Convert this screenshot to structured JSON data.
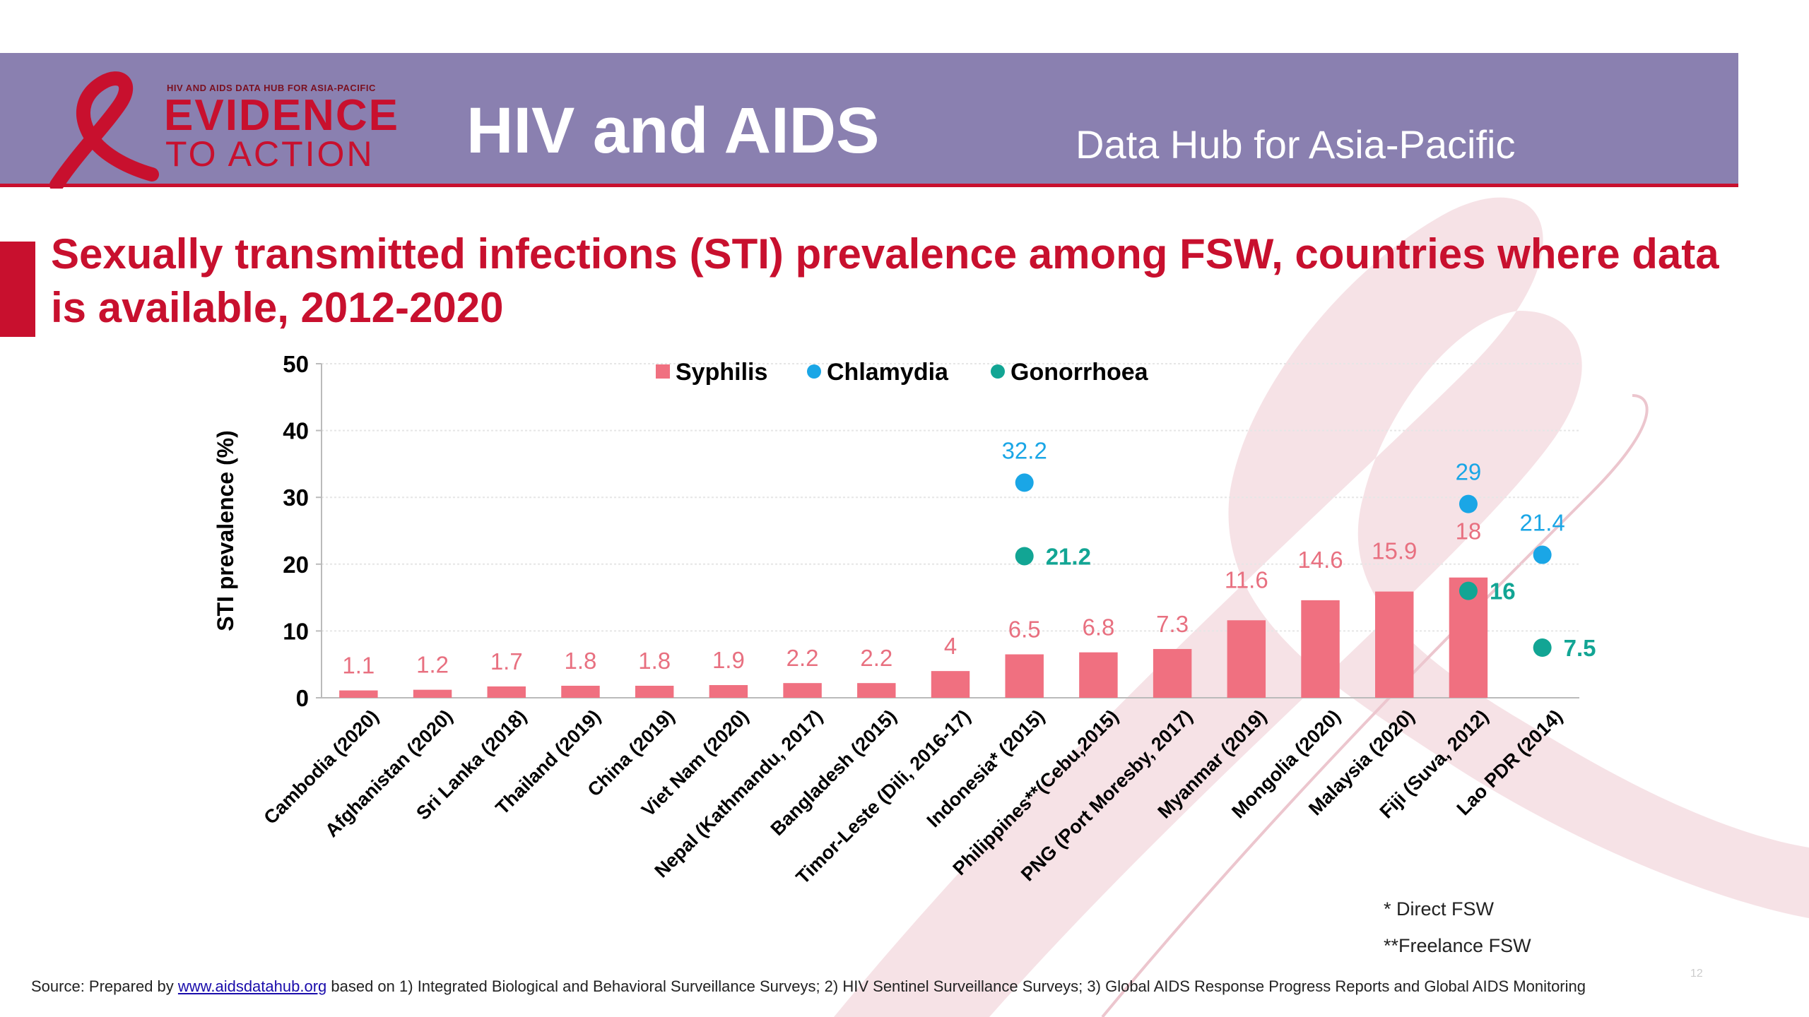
{
  "header": {
    "logo_tagline": "HIV AND AIDS DATA HUB FOR ASIA-PACIFIC",
    "logo_line1": "EVIDENCE",
    "logo_line2": "TO ACTION",
    "title": "HIV and AIDS",
    "subtitle": "Data Hub for Asia-Pacific"
  },
  "slide_title": "Sexually transmitted infections (STI) prevalence among FSW, countries where data is available, 2012-2020",
  "footnotes": [
    "* Direct FSW",
    "**Freelance FSW"
  ],
  "source": {
    "prefix": "Source: Prepared by ",
    "link": "www.aidsdatahub.org",
    "suffix": " based on 1) Integrated Biological and Behavioral Surveillance Surveys; 2) HIV Sentinel Surveillance Surveys; 3) Global AIDS Response Progress Reports and Global AIDS Monitoring"
  },
  "page_number": "12",
  "colors": {
    "header_bg": "#8a80b0",
    "brand_red": "#c8102e",
    "syphilis": "#f07080",
    "syphilis_label": "#e87080",
    "chlamydia": "#1aa6e6",
    "gonorrhoea": "#12a594"
  },
  "chart_data": {
    "type": "bar",
    "title": "",
    "ylabel": "STI prevalence (%)",
    "xlabel": "",
    "ylim": [
      0,
      50
    ],
    "yticks": [
      0,
      10,
      20,
      30,
      40,
      50
    ],
    "grid": true,
    "legend_position": "top",
    "categories": [
      "Cambodia (2020)",
      "Afghanistan (2020)",
      "Sri Lanka (2018)",
      "Thailand (2019)",
      "China (2019)",
      "Viet Nam (2020)",
      "Nepal (Kathmandu, 2017)",
      "Bangladesh (2015)",
      "Timor-Leste (Dili, 2016-17)",
      "Indonesia* (2015)",
      "Philippines**(Cebu,2015)",
      "PNG (Port Moresby, 2017)",
      "Myanmar (2019)",
      "Mongolia (2020)",
      "Malaysia (2020)",
      "Fiji (Suva, 2012)",
      "Lao PDR (2014)"
    ],
    "series": [
      {
        "name": "Syphilis",
        "kind": "bar",
        "values": [
          1.1,
          1.2,
          1.7,
          1.8,
          1.8,
          1.9,
          2.2,
          2.2,
          4,
          6.5,
          6.8,
          7.3,
          11.6,
          14.6,
          15.9,
          18,
          null
        ],
        "labels": [
          "1.1",
          "1.2",
          "1.7",
          "1.8",
          "1.8",
          "1.9",
          "2.2",
          "2.2",
          "4",
          "6.5",
          "6.8",
          "7.3",
          "11.6",
          "14.6",
          "15.9",
          "18",
          ""
        ]
      },
      {
        "name": "Chlamydia",
        "kind": "point",
        "values": [
          null,
          null,
          null,
          null,
          null,
          null,
          null,
          null,
          null,
          32.2,
          null,
          null,
          null,
          null,
          null,
          29,
          21.4
        ],
        "labels": [
          "",
          "",
          "",
          "",
          "",
          "",
          "",
          "",
          "",
          "32.2",
          "",
          "",
          "",
          "",
          "",
          "29",
          "21.4"
        ]
      },
      {
        "name": "Gonorrhoea",
        "kind": "point",
        "values": [
          null,
          null,
          null,
          null,
          null,
          null,
          null,
          null,
          null,
          21.2,
          null,
          null,
          null,
          null,
          null,
          16,
          7.5
        ],
        "labels": [
          "",
          "",
          "",
          "",
          "",
          "",
          "",
          "",
          "",
          "21.2",
          "",
          "",
          "",
          "",
          "",
          "16",
          "7.5"
        ]
      }
    ]
  }
}
